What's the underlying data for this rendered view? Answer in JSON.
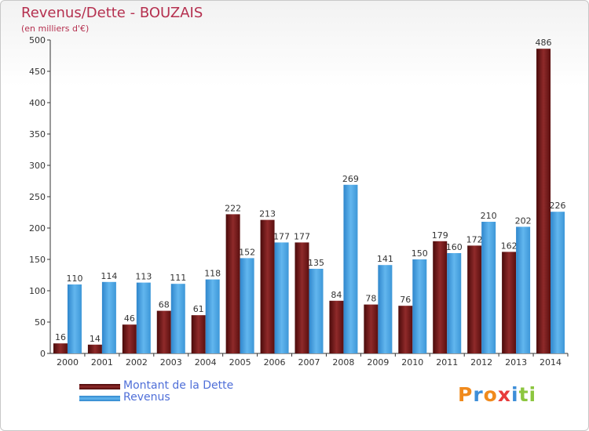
{
  "chart_data": {
    "type": "bar",
    "title": "Revenus/Dette - BOUZAIS",
    "subtitle": "(en milliers d'€)",
    "xlabel": "",
    "ylabel": "",
    "ylim": [
      0,
      500
    ],
    "yticks": [
      0,
      50,
      100,
      150,
      200,
      250,
      300,
      350,
      400,
      450,
      500
    ],
    "grid": false,
    "categories": [
      "2000",
      "2001",
      "2002",
      "2003",
      "2004",
      "2005",
      "2006",
      "2007",
      "2008",
      "2009",
      "2010",
      "2011",
      "2012",
      "2013",
      "2014"
    ],
    "series": [
      {
        "name": "Montant de la Dette",
        "color": "#7a1a1a",
        "values": [
          16,
          14,
          46,
          68,
          61,
          222,
          213,
          177,
          84,
          78,
          76,
          179,
          172,
          162,
          486
        ]
      },
      {
        "name": "Revenus",
        "color": "#4aa3e0",
        "values": [
          110,
          114,
          113,
          111,
          118,
          152,
          177,
          135,
          269,
          141,
          150,
          160,
          210,
          202,
          226
        ]
      }
    ],
    "legend_position": "bottom-left"
  },
  "logo": {
    "letters": [
      "P",
      "r",
      "o",
      "x",
      "i",
      "t",
      "i"
    ],
    "colors": [
      "#f08a1c",
      "#3d8ed8",
      "#f08a1c",
      "#e83b3b",
      "#3d8ed8",
      "#8cc63f",
      "#8cc63f"
    ]
  }
}
